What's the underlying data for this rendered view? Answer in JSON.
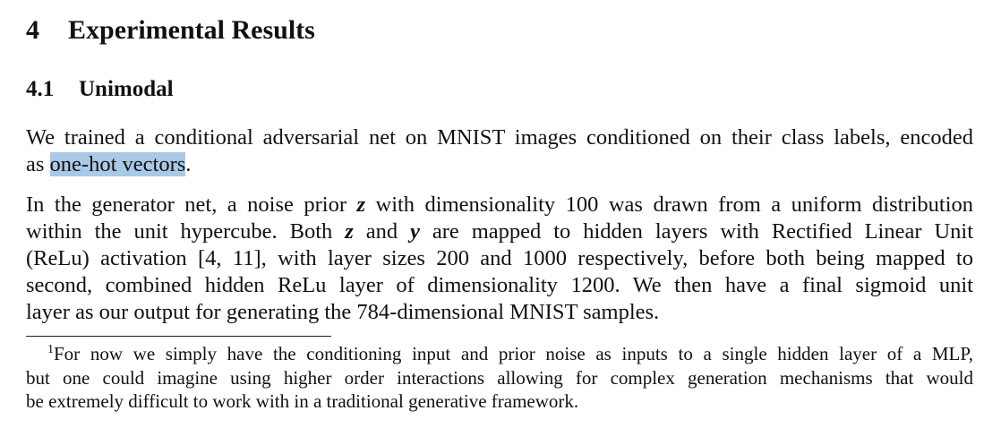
{
  "section": {
    "number": "4",
    "title": "Experimental Results"
  },
  "subsection": {
    "number": "4.1",
    "title": "Unimodal"
  },
  "paragraph1": {
    "line1": "We trained a conditional adversarial net on MNIST images conditioned on their class labels, encoded",
    "line2_pre": "as ",
    "line2_highlight": "one-hot vectors",
    "line2_post": "."
  },
  "paragraph2": {
    "l1_a": "In the generator net, a noise prior ",
    "var_z": "z",
    "l1_b": " with dimensionality 100 was drawn from a uniform distribution",
    "l2_a": "within the unit hypercube.  Both ",
    "var_z2": "z",
    "l2_b": " and ",
    "var_y": "y",
    "l2_c": " are mapped to hidden layers with Rectified Linear Unit",
    "l3": "(ReLu) activation [4, 11], with layer sizes 200 and 1000 respectively, before both being mapped to",
    "l4": "second, combined hidden ReLu layer of dimensionality 1200.  We then have a final sigmoid unit",
    "l5": "layer as our output for generating the 784-dimensional MNIST samples."
  },
  "footnote": {
    "mark": "1",
    "l1": "For now we simply have the conditioning input and prior noise as inputs to a single hidden layer of a MLP,",
    "l2": "but one could imagine using higher order interactions allowing for complex generation mechanisms that would",
    "l3": "be extremely difficult to work with in a traditional generative framework."
  }
}
